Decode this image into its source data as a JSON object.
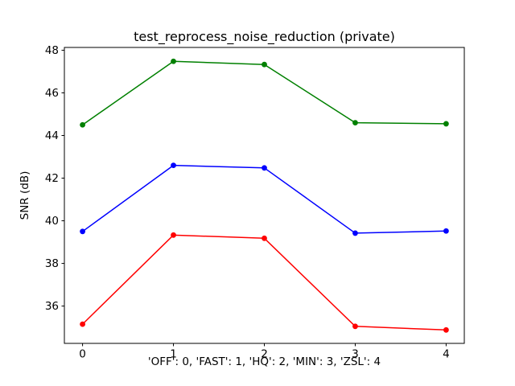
{
  "chart_data": {
    "type": "line",
    "title": "test_reprocess_noise_reduction (private)",
    "xlabel": "'OFF': 0, 'FAST': 1, 'HQ': 2, 'MIN': 3, 'ZSL': 4",
    "ylabel": "SNR (dB)",
    "x": [
      0,
      1,
      2,
      3,
      4
    ],
    "xtick_labels": [
      "0",
      "1",
      "2",
      "3",
      "4"
    ],
    "ytick_values": [
      36,
      38,
      40,
      42,
      44,
      46,
      48
    ],
    "ytick_labels": [
      "36",
      "38",
      "40",
      "42",
      "44",
      "46",
      "48"
    ],
    "xlim": [
      -0.2,
      4.2
    ],
    "ylim": [
      34.25,
      48.13
    ],
    "grid": false,
    "legend_position": "none",
    "marker": "o",
    "background_color": "#ffffff",
    "axis_color": "#000000",
    "series": [
      {
        "name": "green",
        "color": "#008000",
        "values": [
          44.5,
          47.48,
          47.33,
          44.6,
          44.55
        ]
      },
      {
        "name": "blue",
        "color": "#0000ff",
        "values": [
          39.5,
          42.6,
          42.48,
          39.42,
          39.52
        ]
      },
      {
        "name": "red",
        "color": "#ff0000",
        "values": [
          35.15,
          39.33,
          39.18,
          35.05,
          34.88
        ]
      }
    ]
  }
}
